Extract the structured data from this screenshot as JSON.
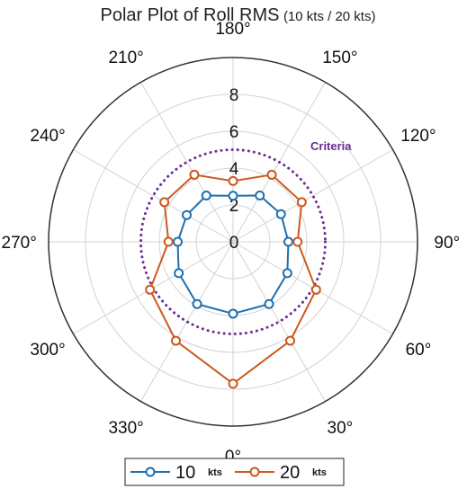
{
  "title": {
    "main": "Polar Plot of Roll RMS",
    "sub": "(10 kts / 20 kts)"
  },
  "colors": {
    "series_10": "#1f6fae",
    "series_20": "#cc5a1e",
    "criteria": "#6a2c91",
    "grid": "#d3d3d3",
    "axis_circle": "#333333"
  },
  "chart_data": {
    "type": "polar-line",
    "title": "Polar Plot of Roll RMS (10 kts / 20 kts)",
    "theta_direction": "counterclockwise",
    "theta_zero_location": "bottom",
    "theta_ticks": [
      "0°",
      "30°",
      "60°",
      "90°",
      "120°",
      "150°",
      "180°",
      "210°",
      "240°",
      "270°",
      "300°",
      "330°"
    ],
    "r_ticks": [
      "0",
      "2",
      "4",
      "6",
      "8"
    ],
    "r_lim": [
      0,
      10
    ],
    "theta": [
      0,
      30,
      60,
      90,
      120,
      150,
      180,
      210,
      240,
      270,
      300,
      330
    ],
    "series": [
      {
        "name": "10",
        "unit": "kts",
        "values": [
          3.9,
          3.9,
          3.4,
          3.0,
          3.0,
          2.9,
          2.5,
          2.9,
          2.9,
          3.0,
          3.4,
          3.9
        ]
      },
      {
        "name": "20",
        "unit": "kts",
        "values": [
          7.7,
          6.2,
          5.2,
          3.5,
          4.3,
          4.2,
          3.3,
          4.2,
          4.3,
          3.5,
          5.2,
          6.2
        ]
      }
    ],
    "criteria": {
      "label": "Criteria",
      "value": 5.0
    },
    "legend": {
      "position": "bottom",
      "orientation": "horizontal"
    }
  }
}
